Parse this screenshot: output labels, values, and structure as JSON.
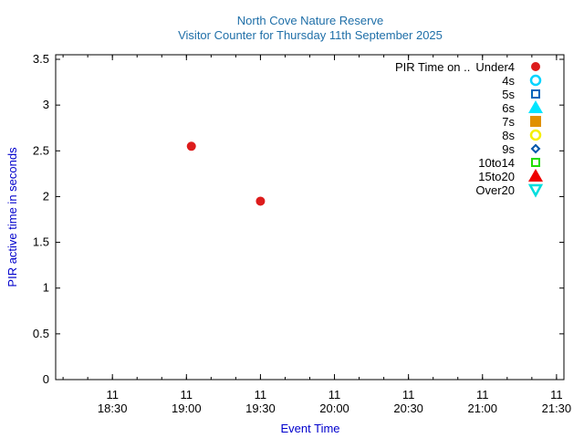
{
  "chart_data": {
    "type": "scatter",
    "title": "North Cove Nature Reserve",
    "subtitle": "Visitor Counter for Thursday 11th September 2025",
    "xlabel": "Event Time",
    "ylabel": "PIR active time in seconds",
    "title_color": "#1f6fa8",
    "axis_label_color": "#0000cc",
    "xlim": [
      "11 18:07",
      "11 21:33"
    ],
    "ylim": [
      0,
      3.55
    ],
    "x_ticks": [
      {
        "day": "11",
        "time": "18:30"
      },
      {
        "day": "11",
        "time": "19:00"
      },
      {
        "day": "11",
        "time": "19:30"
      },
      {
        "day": "11",
        "time": "20:00"
      },
      {
        "day": "11",
        "time": "20:30"
      },
      {
        "day": "11",
        "time": "21:00"
      },
      {
        "day": "11",
        "time": "21:30"
      }
    ],
    "y_ticks": [
      "0",
      "0.5",
      "1",
      "1.5",
      "2",
      "2.5",
      "3",
      "3.5"
    ],
    "grid": false,
    "legend_position": "top-right",
    "legend_title": "PIR Time on ..",
    "series": [
      {
        "name": "Under4",
        "color": "#dd1c1c",
        "marker": "filled-circle",
        "points": [
          {
            "x": "11 19:02",
            "y": 2.55
          },
          {
            "x": "11 19:30",
            "y": 1.95
          }
        ]
      },
      {
        "name": "4s",
        "color": "#00d4ff",
        "marker": "open-circle",
        "points": []
      },
      {
        "name": "5s",
        "color": "#0066bb",
        "marker": "open-square",
        "points": []
      },
      {
        "name": "6s",
        "color": "#00e5ff",
        "marker": "filled-triangle-up",
        "points": []
      },
      {
        "name": "7s",
        "color": "#e09000",
        "marker": "filled-square",
        "points": []
      },
      {
        "name": "8s",
        "color": "#f5ef00",
        "marker": "open-circle",
        "points": []
      },
      {
        "name": "9s",
        "color": "#0055aa",
        "marker": "open-diamond",
        "points": []
      },
      {
        "name": "10to14",
        "color": "#22dd00",
        "marker": "open-square",
        "points": []
      },
      {
        "name": "15to20",
        "color": "#ee0000",
        "marker": "filled-triangle-up",
        "points": []
      },
      {
        "name": "Over20",
        "color": "#00dddd",
        "marker": "open-triangle-down",
        "points": []
      }
    ]
  }
}
